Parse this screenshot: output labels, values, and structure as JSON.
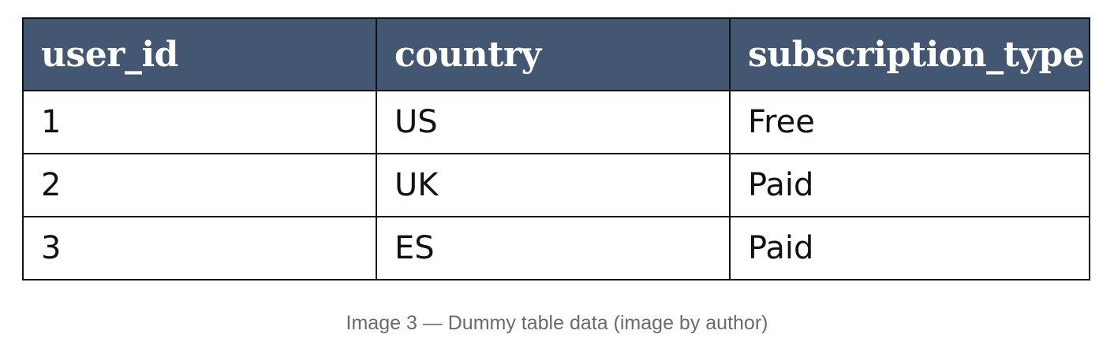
{
  "table": {
    "columns": [
      "user_id",
      "country",
      "subscription_type"
    ],
    "rows": [
      [
        "1",
        "US",
        "Free"
      ],
      [
        "2",
        "UK",
        "Paid"
      ],
      [
        "3",
        "ES",
        "Paid"
      ]
    ]
  },
  "caption": "Image 3 — Dummy table data (image by author)",
  "colors": {
    "header_background": "#435672",
    "header_text": "#ffffff",
    "border": "#111111",
    "caption_text": "#6b6b6b"
  }
}
